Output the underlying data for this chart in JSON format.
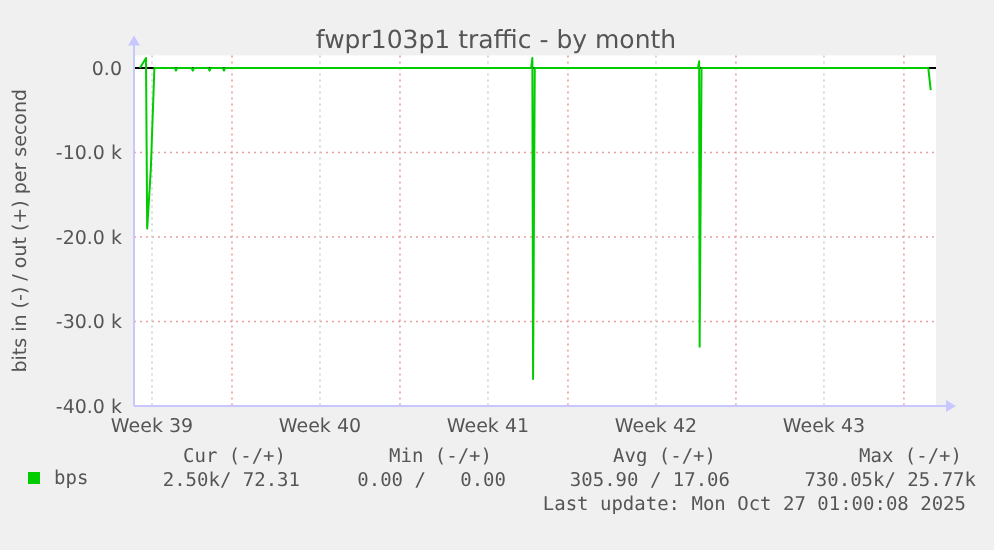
{
  "chart_data": {
    "type": "line",
    "title": "fwpr103p1 traffic - by month",
    "ylabel": "bits in (-) / out (+) per second",
    "x": [
      "2025-09-21T12:00",
      "2025-09-21T18:00",
      "2025-09-21T19:12",
      "2025-09-21T22:48",
      "2025-09-22T02:24",
      "2025-09-22T06:00",
      "2025-09-22T22:48",
      "2025-09-23T00:00",
      "2025-09-23T01:12",
      "2025-09-23T15:36",
      "2025-09-23T16:48",
      "2025-09-23T18:00",
      "2025-09-24T08:24",
      "2025-09-24T09:36",
      "2025-09-24T10:48",
      "2025-09-24T22:48",
      "2025-09-25T00:00",
      "2025-09-25T01:12",
      "2025-09-26T06:00",
      "2025-09-29T06:00",
      "2025-10-03T06:00",
      "2025-10-07T19:12",
      "2025-10-07T20:24",
      "2025-10-07T21:07",
      "2025-10-07T22:48",
      "2025-10-09T06:00",
      "2025-10-14T18:00",
      "2025-10-14T19:12",
      "2025-10-14T19:41",
      "2025-10-14T21:36",
      "2025-10-16T06:00",
      "2025-10-21T06:00",
      "2025-10-24T08:24",
      "2025-10-24T10:48"
    ],
    "series": [
      {
        "name": "bps",
        "color": "#00cc00",
        "values": [
          0,
          1200,
          -19000,
          -12000,
          0,
          0,
          0,
          -300,
          0,
          0,
          -300,
          0,
          0,
          -300,
          0,
          0,
          -300,
          0,
          0,
          0,
          0,
          0,
          1200,
          -36800,
          0,
          0,
          0,
          800,
          -33000,
          0,
          0,
          0,
          0,
          -2600
        ]
      }
    ],
    "xlim": [
      "2025-09-21T06:00",
      "2025-10-24T16:05"
    ],
    "xticks": [
      {
        "value": "2025-09-22T00:00",
        "label": "Week 39"
      },
      {
        "value": "2025-09-25T08:00",
        "label": null
      },
      {
        "value": "2025-09-29T00:00",
        "label": "Week 40"
      },
      {
        "value": "2025-10-02T08:00",
        "label": null
      },
      {
        "value": "2025-10-06T00:00",
        "label": "Week 41"
      },
      {
        "value": "2025-10-09T08:00",
        "label": null
      },
      {
        "value": "2025-10-13T00:00",
        "label": "Week 42"
      },
      {
        "value": "2025-10-16T08:00",
        "label": null
      },
      {
        "value": "2025-10-20T00:00",
        "label": "Week 43"
      },
      {
        "value": "2025-10-23T08:00",
        "label": null
      }
    ],
    "ylim": [
      -40000,
      1500
    ],
    "yticks": [
      {
        "value": 0,
        "label": "0.0"
      },
      {
        "value": -10000,
        "label": "-10.0 k"
      },
      {
        "value": -20000,
        "label": "-20.0 k"
      },
      {
        "value": -30000,
        "label": "-30.0 k"
      },
      {
        "value": -40000,
        "label": "-40.0 k"
      }
    ],
    "grid": true,
    "legend": "bottom",
    "marker": "none",
    "line_style": "solid",
    "ref_lines": [
      {
        "axis": "y",
        "value": 0,
        "label": null,
        "color": "#000000"
      }
    ],
    "annotations": [
      "Cur (-/+)",
      "Min (-/+)",
      "Avg (-/+)",
      "Max (-/+)",
      "2.50k/ 72.31",
      "0.00 /   0.00",
      "305.90 / 17.06",
      "730.05k/ 25.77k",
      "Last update: Mon Oct 27 01:00:08 2025"
    ]
  }
}
